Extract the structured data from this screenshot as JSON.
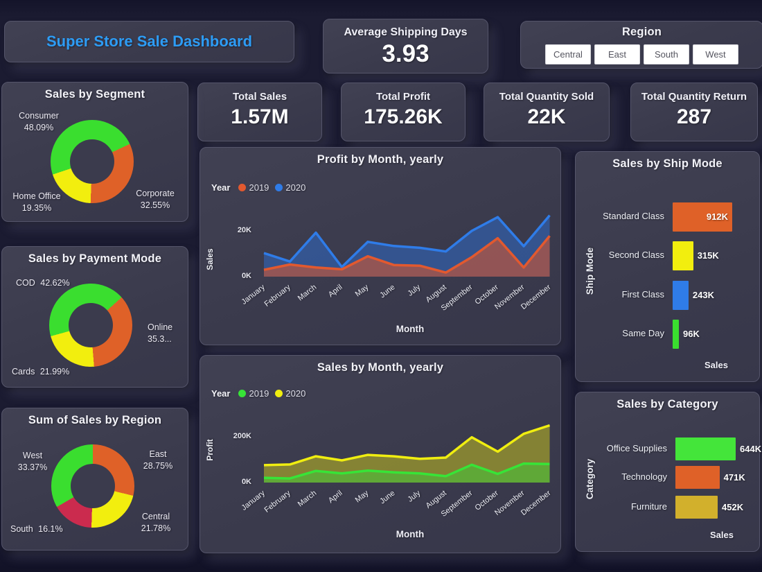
{
  "dashboard": {
    "title": "Super Store Sale Dashboard",
    "accent_color": "#2d9cf5",
    "card_bg": "#3b3b4d",
    "page_bg": "#1b1b31"
  },
  "region_filter": {
    "title": "Region",
    "options": [
      "Central",
      "East",
      "South",
      "West"
    ]
  },
  "kpis": {
    "avg_shipping": {
      "label": "Average Shipping Days",
      "value": "3.93"
    },
    "total_sales": {
      "label": "Total Sales",
      "value": "1.57M"
    },
    "total_profit": {
      "label": "Total Profit",
      "value": "175.26K"
    },
    "total_qty_sold": {
      "label": "Total Quantity Sold",
      "value": "22K"
    },
    "total_qty_return": {
      "label": "Total Quantity Return",
      "value": "287"
    }
  },
  "chart_data": [
    {
      "id": "sales_by_segment",
      "type": "pie",
      "donut": true,
      "title": "Sales by Segment",
      "rotation_deg": 65,
      "slices": [
        {
          "label": "Corporate",
          "pct": 32.55,
          "pct_label": "32.55%",
          "color": "#df6128"
        },
        {
          "label": "Home Office",
          "pct": 19.35,
          "pct_label": "19.35%",
          "color": "#f2ee0e"
        },
        {
          "label": "Consumer",
          "pct": 48.09,
          "pct_label": "48.09%",
          "color": "#3ade2f"
        }
      ]
    },
    {
      "id": "sales_by_payment_mode",
      "type": "pie",
      "donut": true,
      "title": "Sales by Payment Mode",
      "rotation_deg": 48,
      "slices": [
        {
          "label": "Online",
          "pct": 35.39,
          "pct_label": "35.3...",
          "color": "#df6128"
        },
        {
          "label": "Cards",
          "pct": 21.99,
          "pct_label": "21.99%",
          "color": "#f2ee0e"
        },
        {
          "label": "COD",
          "pct": 42.62,
          "pct_label": "42.62%",
          "color": "#3ade2f"
        }
      ]
    },
    {
      "id": "sum_of_sales_by_region",
      "type": "pie",
      "donut": true,
      "title": "Sum of Sales by Region",
      "rotation_deg": 0,
      "slices": [
        {
          "label": "East",
          "pct": 28.75,
          "pct_label": "28.75%",
          "color": "#df6128"
        },
        {
          "label": "Central",
          "pct": 21.78,
          "pct_label": "21.78%",
          "color": "#f2ee0e"
        },
        {
          "label": "South",
          "pct": 16.1,
          "pct_label": "16.1%",
          "color": "#cb2b4e"
        },
        {
          "label": "West",
          "pct": 33.37,
          "pct_label": "33.37%",
          "color": "#3ade2f"
        }
      ]
    },
    {
      "id": "profit_by_month",
      "type": "area",
      "title": "Profit by Month, yearly",
      "legend_title": "Year",
      "xlabel": "Month",
      "ylabel": "Sales",
      "unit": "K",
      "ylim": [
        0,
        30
      ],
      "yticks": [
        {
          "label": "0K",
          "v": 0
        },
        {
          "label": "20K",
          "v": 20
        }
      ],
      "x": [
        "January",
        "February",
        "March",
        "April",
        "May",
        "June",
        "July",
        "August",
        "September",
        "October",
        "November",
        "December"
      ],
      "series": [
        {
          "name": "2020",
          "color": "#2f7ce8",
          "fill": "rgba(46,110,210,0.50)",
          "values": [
            10.3,
            6.6,
            19.2,
            4.2,
            15.2,
            13.4,
            12.6,
            11.0,
            20.0,
            26.0,
            13.3,
            26.8
          ]
        },
        {
          "name": "2019",
          "color": "#e2592f",
          "fill": "rgba(205,85,50,0.62)",
          "values": [
            3.0,
            5.3,
            4.0,
            3.2,
            8.9,
            5.1,
            4.8,
            1.8,
            8.5,
            16.8,
            4.0,
            17.8
          ]
        }
      ]
    },
    {
      "id": "sales_by_month",
      "type": "area",
      "title": "Sales by Month, yearly",
      "legend_title": "Year",
      "xlabel": "Month",
      "ylabel": "Profit",
      "unit": "K",
      "ylim": [
        0,
        260
      ],
      "yticks": [
        {
          "label": "0K",
          "v": 0
        },
        {
          "label": "200K",
          "v": 200
        }
      ],
      "x": [
        "January",
        "February",
        "March",
        "April",
        "May",
        "June",
        "July",
        "August",
        "September",
        "October",
        "November",
        "December"
      ],
      "series": [
        {
          "name": "2020",
          "color": "#f0ee10",
          "fill": "rgba(235,230,20,0.42)",
          "values": [
            76,
            79,
            115,
            97,
            121,
            115,
            104,
            109,
            198,
            135,
            213,
            250
          ]
        },
        {
          "name": "2019",
          "color": "#37e437",
          "fill": "rgba(50,215,60,0.45)",
          "values": [
            21,
            18,
            51,
            40,
            52,
            45,
            40,
            28,
            78,
            38,
            83,
            81
          ]
        }
      ]
    },
    {
      "id": "sales_by_ship_mode",
      "type": "bar",
      "title": "Sales by Ship Mode",
      "xlabel": "Sales",
      "ylabel": "Ship Mode",
      "unit": "K",
      "bars": [
        {
          "label": "Standard Class",
          "value": 912,
          "value_label": "912K",
          "color": "#df6128"
        },
        {
          "label": "Second Class",
          "value": 315,
          "value_label": "315K",
          "color": "#f2ee0e"
        },
        {
          "label": "First Class",
          "value": 243,
          "value_label": "243K",
          "color": "#2f7ce8"
        },
        {
          "label": "Same Day",
          "value": 96,
          "value_label": "96K",
          "color": "#3ade2f"
        }
      ]
    },
    {
      "id": "sales_by_category",
      "type": "bar",
      "title": "Sales by Category",
      "xlabel": "Sales",
      "ylabel": "Category",
      "unit": "K",
      "bars": [
        {
          "label": "Office Supplies",
          "value": 644,
          "value_label": "644K",
          "color": "#44e53a"
        },
        {
          "label": "Technology",
          "value": 471,
          "value_label": "471K",
          "color": "#df6128"
        },
        {
          "label": "Furniture",
          "value": 452,
          "value_label": "452K",
          "color": "#d2b02c"
        }
      ]
    }
  ]
}
